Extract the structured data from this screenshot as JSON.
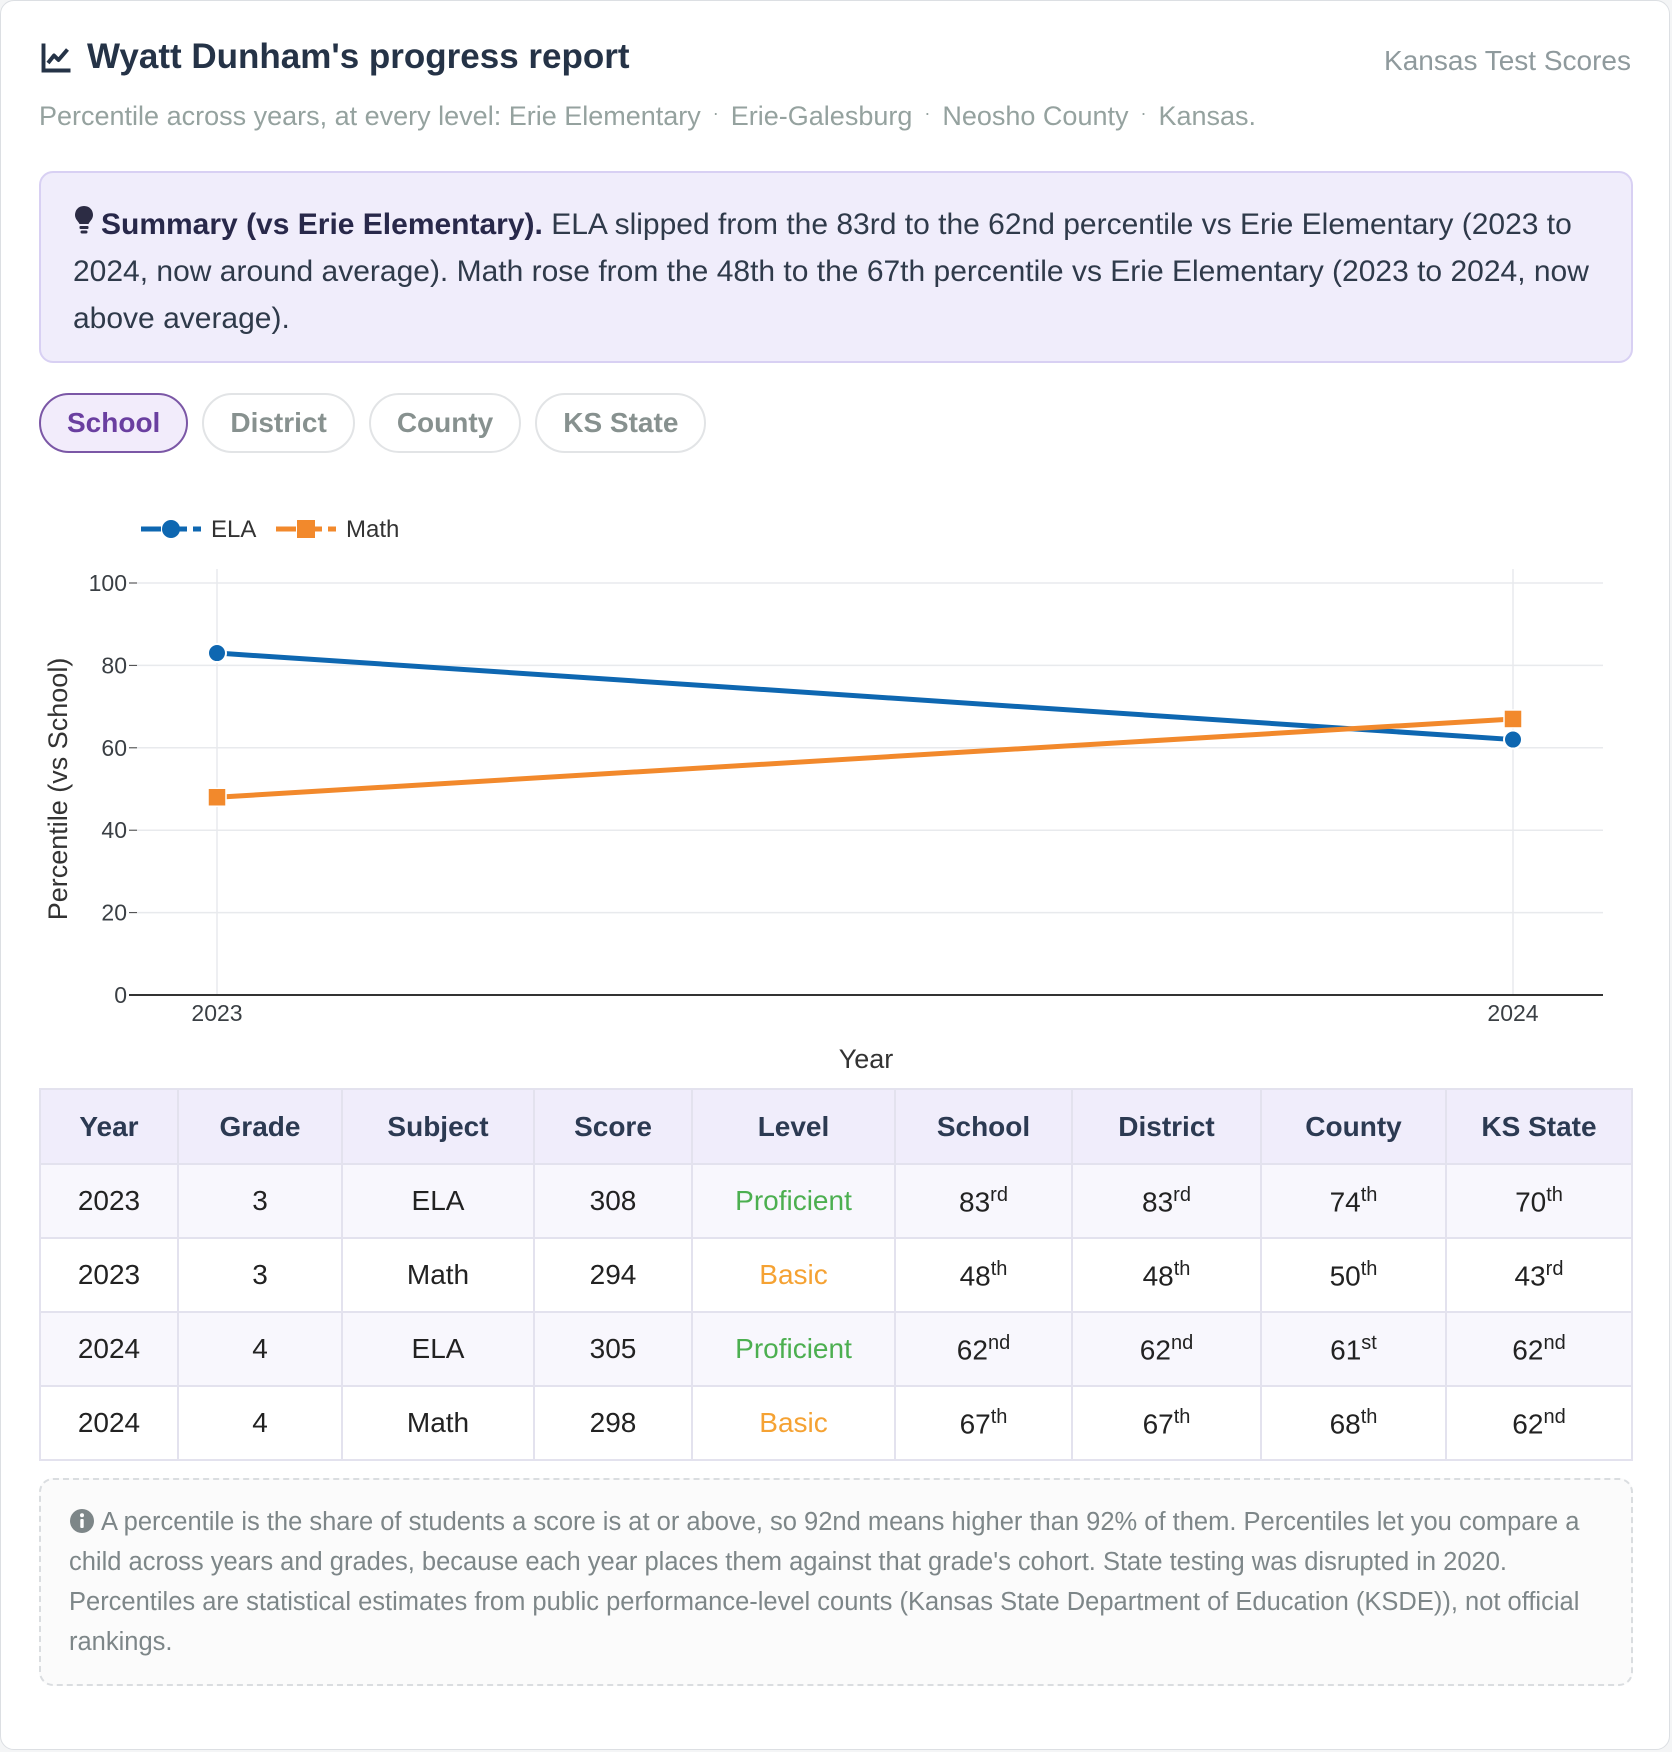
{
  "header": {
    "title": "Wyatt Dunham's progress report",
    "brand": "Kansas Test Scores",
    "subtitle_prefix": "Percentile across years, at every level: ",
    "levels": [
      "Erie Elementary",
      "Erie-Galesburg",
      "Neosho County",
      "Kansas."
    ]
  },
  "summary": {
    "heading": "Summary (vs Erie Elementary).",
    "text": " ELA slipped from the 83rd to the 62nd percentile vs Erie Elementary (2023 to 2024, now around average). Math rose from the 48th to the 67th percentile vs Erie Elementary (2023 to 2024, now above average)."
  },
  "tabs": [
    {
      "label": "School",
      "active": true
    },
    {
      "label": "District",
      "active": false
    },
    {
      "label": "County",
      "active": false
    },
    {
      "label": "KS State",
      "active": false
    }
  ],
  "chart_data": {
    "type": "line",
    "x": [
      "2023",
      "2024"
    ],
    "xlabel": "Year",
    "ylabel": "Percentile (vs School)",
    "ylim": [
      0,
      100
    ],
    "yticks": [
      0,
      20,
      40,
      60,
      80,
      100
    ],
    "grid": true,
    "legend": "top-left",
    "series": [
      {
        "name": "ELA",
        "values": [
          83,
          62
        ],
        "color": "#0e67b1",
        "marker": "circle"
      },
      {
        "name": "Math",
        "values": [
          48,
          67
        ],
        "color": "#f2892c",
        "marker": "square"
      }
    ]
  },
  "table": {
    "headers": [
      "Year",
      "Grade",
      "Subject",
      "Score",
      "Level",
      "School",
      "District",
      "County",
      "KS State"
    ],
    "rows": [
      {
        "year": "2023",
        "grade": "3",
        "subject": "ELA",
        "score": "308",
        "level": "Proficient",
        "level_kind": "prof",
        "ranks": [
          [
            "83",
            "rd"
          ],
          [
            "83",
            "rd"
          ],
          [
            "74",
            "th"
          ],
          [
            "70",
            "th"
          ]
        ]
      },
      {
        "year": "2023",
        "grade": "3",
        "subject": "Math",
        "score": "294",
        "level": "Basic",
        "level_kind": "basic",
        "ranks": [
          [
            "48",
            "th"
          ],
          [
            "48",
            "th"
          ],
          [
            "50",
            "th"
          ],
          [
            "43",
            "rd"
          ]
        ]
      },
      {
        "year": "2024",
        "grade": "4",
        "subject": "ELA",
        "score": "305",
        "level": "Proficient",
        "level_kind": "prof",
        "ranks": [
          [
            "62",
            "nd"
          ],
          [
            "62",
            "nd"
          ],
          [
            "61",
            "st"
          ],
          [
            "62",
            "nd"
          ]
        ]
      },
      {
        "year": "2024",
        "grade": "4",
        "subject": "Math",
        "score": "298",
        "level": "Basic",
        "level_kind": "basic",
        "ranks": [
          [
            "67",
            "th"
          ],
          [
            "67",
            "th"
          ],
          [
            "68",
            "th"
          ],
          [
            "62",
            "nd"
          ]
        ]
      }
    ]
  },
  "note": {
    "text": "A percentile is the share of students a score is at or above, so 92nd means higher than 92% of them. Percentiles let you compare a child across years and grades, because each year places them against that grade's cohort. State testing was disrupted in 2020. Percentiles are statistical estimates from public performance-level counts (Kansas State Department of Education (KSDE)), not official rankings."
  },
  "colors": {
    "accent": "#6a3fa0",
    "ela": "#0e67b1",
    "math": "#f2892c",
    "proficient": "#4caf50",
    "basic": "#f5a233"
  }
}
